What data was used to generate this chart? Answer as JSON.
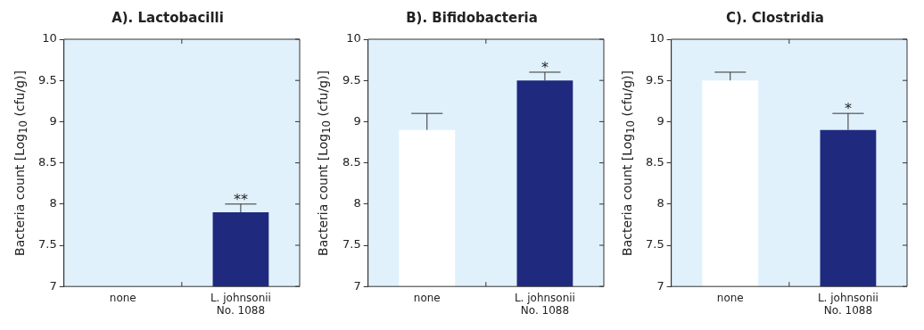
{
  "chart_data": [
    {
      "type": "bar",
      "title": "A). Lactobacilli",
      "ylabel": "Bacteria count [Log$_{10}$ (cfu/g)]",
      "categories": [
        "none",
        "L. johnsonii No. 1088"
      ],
      "values": [
        null,
        7.9
      ],
      "colors": [
        "#ffffff",
        "#1f2a7e"
      ],
      "errors": [
        null,
        [
          7.9,
          8.0
        ]
      ],
      "ylim": [
        7,
        10
      ],
      "yticks": [
        7,
        7.5,
        8,
        8.5,
        9,
        9.5,
        10
      ],
      "grid": false,
      "legend": false,
      "annotations": [
        {
          "text": "**",
          "x": "L. johnsonii No. 1088",
          "y": 8.0
        }
      ]
    },
    {
      "type": "bar",
      "title": "B). Bifidobacteria",
      "ylabel": "Bacteria count [Log$_{10}$ (cfu/g)]",
      "categories": [
        "none",
        "L. johnsonii No. 1088"
      ],
      "values": [
        8.9,
        9.5
      ],
      "colors": [
        "#ffffff",
        "#1f2a7e"
      ],
      "errors": [
        [
          8.9,
          9.1
        ],
        [
          9.5,
          9.6
        ]
      ],
      "ylim": [
        7,
        10
      ],
      "yticks": [
        7,
        7.5,
        8,
        8.5,
        9,
        9.5,
        10
      ],
      "grid": false,
      "legend": false,
      "annotations": [
        {
          "text": "*",
          "x": "L. johnsonii No. 1088",
          "y": 9.6
        }
      ]
    },
    {
      "type": "bar",
      "title": "C). Clostridia",
      "ylabel": "Bacteria count [Log$_{10}$ (cfu/g)]",
      "categories": [
        "none",
        "L. johnsonii No. 1088"
      ],
      "values": [
        9.5,
        8.9
      ],
      "colors": [
        "#ffffff",
        "#1f2a7e"
      ],
      "errors": [
        [
          9.5,
          9.6
        ],
        [
          8.9,
          9.1
        ]
      ],
      "ylim": [
        7,
        10
      ],
      "yticks": [
        7,
        7.5,
        8,
        8.5,
        9,
        9.5,
        10
      ],
      "grid": false,
      "legend": false,
      "annotations": [
        {
          "text": "*",
          "x": "L. johnsonii No. 1088",
          "y": 9.1
        }
      ]
    }
  ]
}
